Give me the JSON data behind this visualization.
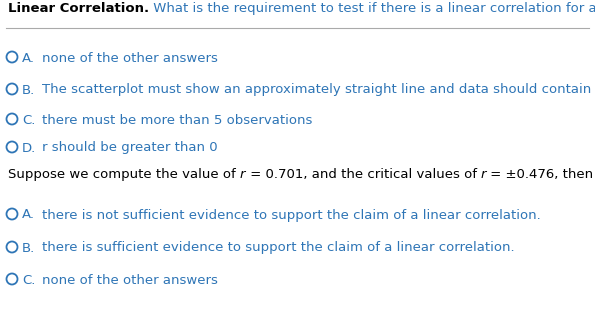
{
  "bg_color": "#ffffff",
  "title_bold": "Linear Correlation.",
  "title_normal": " What is the requirement to test if there is a linear correlation for a population?",
  "title_color_bold": "#000000",
  "title_color_normal": "#2e75b6",
  "q1_options": [
    {
      "label": "A.",
      "text": "none of the other answers"
    },
    {
      "label": "B.",
      "text": "The scatterplot must show an approximately straight line and data should contain no outliers"
    },
    {
      "label": "C.",
      "text": "there must be more than 5 observations"
    },
    {
      "label": "D.",
      "text": "r should be greater than 0"
    }
  ],
  "suppose_text1": "Suppose we compute the value of ",
  "suppose_r1": "r",
  "suppose_text2": " = 0.701, and the critical values of ",
  "suppose_r2": "r",
  "suppose_text3": " = ±0.476, then",
  "q2_options": [
    {
      "label": "A.",
      "text": "there is not sufficient evidence to support the claim of a linear correlation."
    },
    {
      "label": "B.",
      "text": "there is sufficient evidence to support the claim of a linear correlation."
    },
    {
      "label": "C.",
      "text": "none of the other answers"
    }
  ],
  "circle_color": "#2e75b6",
  "text_color": "#2e75b6",
  "black_color": "#000000",
  "fontsize": 9.5,
  "fig_width": 5.95,
  "fig_height": 3.23,
  "dpi": 100
}
